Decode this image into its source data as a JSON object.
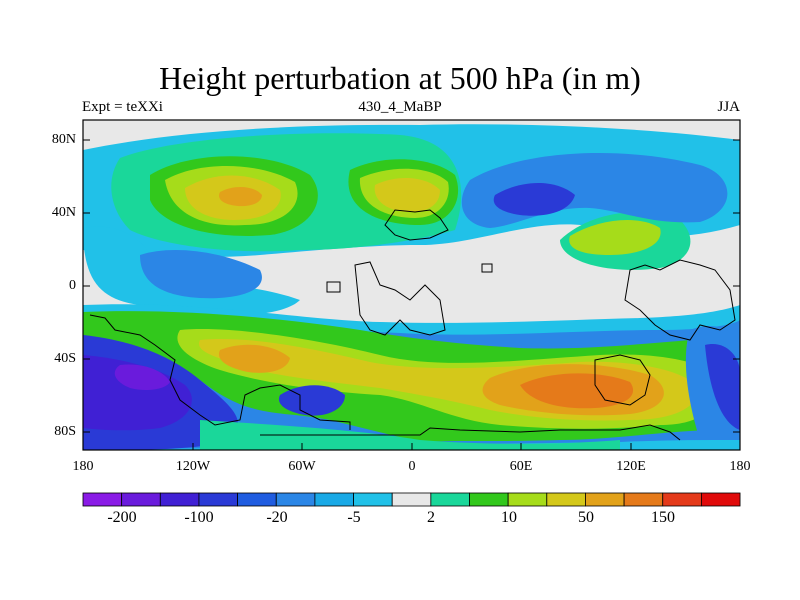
{
  "map": {
    "title": "Height perturbation at 500 hPa (in m)",
    "subtitle_left": "Expt = teXXi",
    "subtitle_center": "430_4_MaBP",
    "subtitle_right": "JJA",
    "lat_labels": [
      "80N",
      "40N",
      "0",
      "40S",
      "80S"
    ],
    "lon_labels": [
      "180",
      "120W",
      "60W",
      "0",
      "60E",
      "120E",
      "180"
    ]
  },
  "colorbar": {
    "colors": [
      "#8a1be6",
      "#6a1bdc",
      "#4020d4",
      "#2a3ad6",
      "#1f5ce0",
      "#2b86e6",
      "#19a9e6",
      "#21c1e8",
      "#e8e8e8",
      "#1ad79a",
      "#32c81c",
      "#a6dc1a",
      "#d4c81a",
      "#e2a21a",
      "#e57a1a",
      "#e43a1a",
      "#e00a0a"
    ],
    "labels": [
      "-200",
      "-100",
      "-20",
      "-5",
      "2",
      "10",
      "50",
      "150"
    ]
  },
  "palette": {
    "background": "#e8e8e8",
    "neg_light": "#21c1e8",
    "neg_mid": "#2b86e6",
    "neg_deep": "#2a3ad6",
    "neg_deepest": "#4020d4",
    "purple": "#6a1bdc",
    "pos_light": "#1ad79a",
    "pos_green": "#32c81c",
    "pos_lime": "#a6dc1a",
    "pos_yellow": "#d4c81a",
    "pos_orange": "#e2a21a",
    "pos_dark_orange": "#e57a1a",
    "pos_red": "#e43a1a"
  }
}
